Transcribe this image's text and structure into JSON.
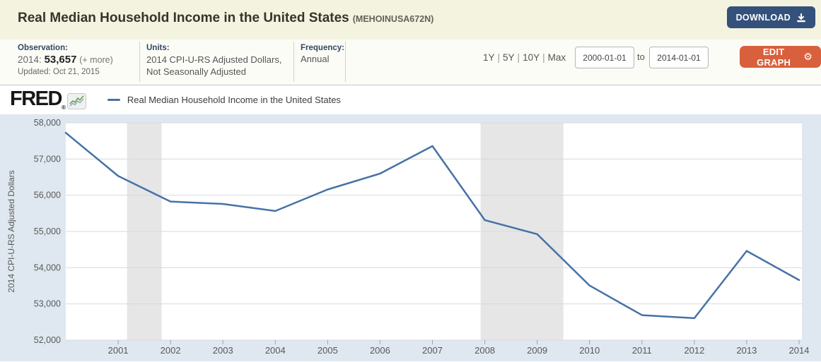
{
  "header": {
    "title": "Real Median Household Income in the United States",
    "series_id": "(MEHOINUSA672N)",
    "download": {
      "label": "DOWNLOAD"
    }
  },
  "info_bar": {
    "observation": {
      "label": "Observation:",
      "date_prefix": "2014:",
      "value": "53,657",
      "more": "(+ more)",
      "updated": "Updated: Oct 21, 2015"
    },
    "units": {
      "label": "Units:",
      "line1": "2014 CPI-U-RS Adjusted Dollars,",
      "line2": "Not Seasonally Adjusted"
    },
    "frequency": {
      "label": "Frequency:",
      "value": "Annual"
    },
    "range_selector": {
      "items": [
        "1Y",
        "5Y",
        "10Y",
        "Max"
      ],
      "separator": "|"
    },
    "date_range": {
      "from": "2000-01-01",
      "to_label": "to",
      "to": "2014-01-01"
    },
    "edit_graph": {
      "label": "EDIT GRAPH",
      "gear_icon": "⚙"
    }
  },
  "legend_bar": {
    "brand": "FRED",
    "reg_mark": "®",
    "series_label": "Real Median Household Income in the United States"
  },
  "chart_data": {
    "type": "line",
    "title": "Real Median Household Income in the United States",
    "xlabel": "",
    "ylabel": "2014 CPI-U-RS Adjusted Dollars",
    "x": [
      2000,
      2001,
      2002,
      2003,
      2004,
      2005,
      2006,
      2007,
      2008,
      2009,
      2010,
      2011,
      2012,
      2013,
      2014
    ],
    "values": [
      57724,
      56531,
      55825,
      55759,
      55565,
      56160,
      56598,
      57357,
      55313,
      54925,
      53507,
      52690,
      52605,
      54462,
      53657
    ],
    "xlim": [
      2000,
      2014
    ],
    "ylim": [
      52000,
      58000
    ],
    "grid": true,
    "legend_position": "top-left",
    "line_color": "#4572a7",
    "band_color": "#e6e6e6",
    "yticks": [
      {
        "value": 52000,
        "label": "52,000"
      },
      {
        "value": 53000,
        "label": "53,000"
      },
      {
        "value": 54000,
        "label": "54,000"
      },
      {
        "value": 55000,
        "label": "55,000"
      },
      {
        "value": 56000,
        "label": "56,000"
      },
      {
        "value": 57000,
        "label": "57,000"
      },
      {
        "value": 58000,
        "label": "58,000"
      }
    ],
    "xticks": [
      2001,
      2002,
      2003,
      2004,
      2005,
      2006,
      2007,
      2008,
      2009,
      2010,
      2011,
      2012,
      2013,
      2014
    ],
    "recession_bands": [
      {
        "start": 2001.17,
        "end": 2001.83
      },
      {
        "start": 2007.92,
        "end": 2009.5
      }
    ]
  },
  "colors": {
    "header_bg": "#f3f3e0",
    "info_bg": "#fcfcf7",
    "chart_bg": "#dfe8f0",
    "plot_bg": "#ffffff",
    "grid": "#d9d9d9",
    "axis_text": "#585858",
    "download_btn": "#33517a",
    "edit_btn": "#d9603c"
  }
}
